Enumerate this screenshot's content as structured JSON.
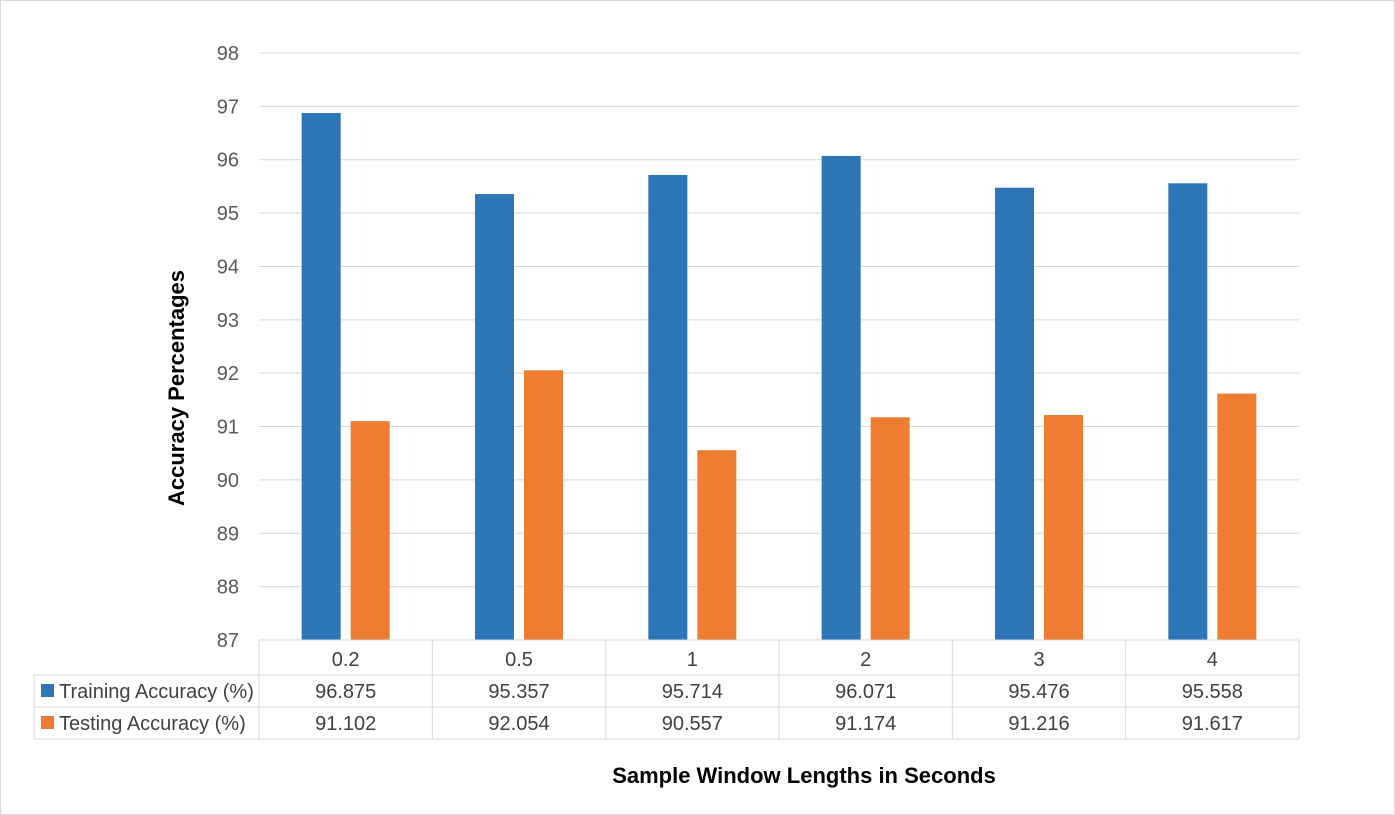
{
  "chart_data": {
    "type": "bar",
    "categories": [
      "0.2",
      "0.5",
      "1",
      "2",
      "3",
      "4"
    ],
    "series": [
      {
        "name": "Training Accuracy (%)",
        "values": [
          96.875,
          95.357,
          95.714,
          96.071,
          95.476,
          95.558
        ],
        "color": "#2e75b6"
      },
      {
        "name": "Testing Accuracy (%)",
        "values": [
          91.102,
          92.054,
          90.557,
          91.174,
          91.216,
          91.617
        ],
        "color": "#ed7d31"
      }
    ],
    "table_values": [
      [
        "96.875",
        "95.357",
        "95.714",
        "96.071",
        "95.476",
        "95.558"
      ],
      [
        "91.102",
        "92.054",
        "90.557",
        "91.174",
        "91.216",
        "91.617"
      ]
    ],
    "y_ticks": [
      "87",
      "88",
      "89",
      "90",
      "91",
      "92",
      "93",
      "94",
      "95",
      "96",
      "97",
      "98"
    ],
    "ylim": [
      87,
      98
    ],
    "xlabel": "Sample Window Lengths in Seconds",
    "ylabel": "Accuracy Percentages",
    "grid": true,
    "legend": "data-table"
  }
}
